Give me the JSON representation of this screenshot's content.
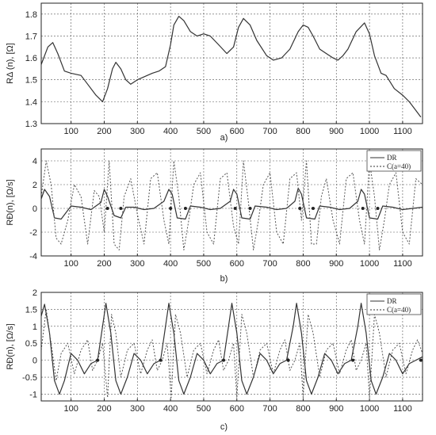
{
  "chart_data": [
    {
      "id": "a",
      "type": "line",
      "caption": "a)",
      "ylabel": "RΔ (n), [Ω]",
      "xlim": [
        10,
        1160
      ],
      "ylim": [
        1.3,
        1.85
      ],
      "xticks": [
        100,
        200,
        300,
        400,
        500,
        600,
        700,
        800,
        900,
        1000,
        1100
      ],
      "yticks": [
        1.3,
        1.4,
        1.5,
        1.6,
        1.7,
        1.8
      ],
      "ytick_labels": [
        "1.3",
        "1.4",
        "1.5",
        "1.6",
        "1.7",
        "1.8"
      ],
      "grid": true,
      "legend": null,
      "series": [
        {
          "style": "solid",
          "x": [
            10,
            30,
            45,
            60,
            80,
            100,
            130,
            150,
            175,
            195,
            210,
            225,
            235,
            250,
            265,
            280,
            300,
            330,
            345,
            365,
            385,
            400,
            410,
            425,
            440,
            460,
            480,
            500,
            520,
            545,
            570,
            590,
            605,
            620,
            640,
            660,
            690,
            710,
            735,
            760,
            785,
            800,
            815,
            830,
            850,
            870,
            890,
            905,
            920,
            935,
            960,
            985,
            1000,
            1015,
            1035,
            1050,
            1075,
            1100,
            1120,
            1140,
            1155
          ],
          "y": [
            1.57,
            1.65,
            1.67,
            1.62,
            1.54,
            1.53,
            1.52,
            1.48,
            1.43,
            1.4,
            1.46,
            1.55,
            1.58,
            1.55,
            1.5,
            1.48,
            1.5,
            1.52,
            1.53,
            1.54,
            1.56,
            1.66,
            1.75,
            1.79,
            1.77,
            1.72,
            1.7,
            1.71,
            1.7,
            1.66,
            1.62,
            1.65,
            1.74,
            1.78,
            1.75,
            1.68,
            1.61,
            1.59,
            1.6,
            1.64,
            1.72,
            1.75,
            1.74,
            1.7,
            1.64,
            1.62,
            1.6,
            1.59,
            1.61,
            1.64,
            1.72,
            1.76,
            1.71,
            1.61,
            1.53,
            1.52,
            1.46,
            1.43,
            1.4,
            1.36,
            1.33
          ]
        }
      ]
    },
    {
      "id": "b",
      "type": "line",
      "caption": "b)",
      "ylabel": "RĐ(n), [Ω/s]",
      "xlim": [
        10,
        1160
      ],
      "ylim": [
        -4,
        5
      ],
      "xticks": [
        100,
        200,
        300,
        400,
        500,
        600,
        700,
        800,
        900,
        1000,
        1100
      ],
      "yticks": [
        -4,
        -2,
        0,
        2,
        4
      ],
      "ytick_labels": [
        "-4",
        "-2",
        "0",
        "2",
        "4"
      ],
      "grid": true,
      "legend": {
        "placement": "top-right",
        "entries": [
          "DR",
          "C(a=40)"
        ]
      },
      "zero_markers": [
        210,
        250,
        400,
        445,
        595,
        640,
        790,
        830,
        980,
        1025
      ],
      "series": [
        {
          "name": "DR",
          "style": "solid",
          "x": [
            10,
            20,
            35,
            50,
            70,
            100,
            130,
            160,
            190,
            200,
            210,
            230,
            250,
            265,
            290,
            320,
            350,
            380,
            395,
            405,
            420,
            445,
            460,
            490,
            520,
            550,
            580,
            590,
            600,
            615,
            640,
            655,
            690,
            720,
            750,
            775,
            785,
            795,
            810,
            835,
            850,
            880,
            910,
            940,
            965,
            975,
            985,
            1000,
            1025,
            1040,
            1070,
            1100,
            1130,
            1160
          ],
          "y": [
            0.8,
            1.6,
            1.0,
            -0.8,
            -0.9,
            0.2,
            0.1,
            -0.1,
            0.5,
            1.6,
            1.0,
            -0.6,
            -0.8,
            0.1,
            0.1,
            -0.1,
            0.0,
            0.6,
            1.6,
            1.2,
            -0.8,
            -0.9,
            0.2,
            0.1,
            -0.1,
            0.0,
            0.6,
            1.6,
            1.2,
            -0.8,
            -0.9,
            0.2,
            0.1,
            -0.1,
            0.0,
            0.6,
            1.7,
            1.2,
            -0.8,
            -0.9,
            0.2,
            0.1,
            -0.1,
            0.0,
            0.6,
            1.6,
            1.2,
            -0.8,
            -0.9,
            0.2,
            0.1,
            -0.1,
            0.0,
            0.1
          ]
        },
        {
          "name": "C(a=40)",
          "style": "dotted",
          "x": [
            10,
            25,
            40,
            55,
            70,
            90,
            110,
            130,
            150,
            170,
            185,
            200,
            215,
            230,
            245,
            260,
            280,
            300,
            320,
            340,
            360,
            380,
            395,
            410,
            425,
            440,
            455,
            470,
            490,
            510,
            530,
            550,
            570,
            590,
            605,
            620,
            635,
            650,
            665,
            680,
            700,
            720,
            740,
            760,
            780,
            795,
            810,
            825,
            840,
            855,
            870,
            890,
            910,
            930,
            950,
            970,
            985,
            1000,
            1015,
            1030,
            1045,
            1060,
            1080,
            1100,
            1120,
            1140,
            1160
          ],
          "y": [
            1.0,
            4.0,
            2.0,
            -2.5,
            -3.0,
            -1.0,
            2.0,
            1.0,
            -3.0,
            1.5,
            1.0,
            -2.0,
            4.0,
            -3.0,
            -3.5,
            1.0,
            2.5,
            -0.5,
            -3.0,
            2.5,
            3.0,
            -1.0,
            -3.0,
            4.0,
            1.0,
            -3.5,
            -1.0,
            2.0,
            3.0,
            -2.0,
            -3.0,
            2.5,
            3.0,
            -1.5,
            -3.0,
            4.0,
            0.5,
            -3.5,
            -1.0,
            2.0,
            3.0,
            -2.0,
            -3.0,
            2.5,
            3.0,
            -1.0,
            4.0,
            -3.0,
            -3.0,
            1.0,
            2.5,
            -1.0,
            -3.0,
            2.5,
            3.0,
            -1.0,
            -3.0,
            4.0,
            1.0,
            -3.5,
            -1.0,
            2.0,
            3.0,
            -2.0,
            -3.0,
            2.5,
            2.0
          ]
        }
      ]
    },
    {
      "id": "c",
      "type": "line",
      "caption": "c)",
      "ylabel": "RĐ(n), [Ω/s]",
      "xlim": [
        10,
        1160
      ],
      "ylim": [
        -1.2,
        2.0
      ],
      "xticks": [
        100,
        200,
        300,
        400,
        500,
        600,
        700,
        800,
        900,
        1000,
        1100
      ],
      "yticks": [
        -1,
        -0.5,
        0,
        0.5,
        1,
        1.5,
        2
      ],
      "ytick_labels": [
        "-1",
        "-0.5",
        "0",
        "0.5",
        "1",
        "1.5",
        "2"
      ],
      "grid": true,
      "legend": {
        "placement": "top-right",
        "entries": [
          "DR",
          "C(a=40)"
        ]
      },
      "zero_markers": [
        180,
        370,
        560,
        755,
        950,
        1155
      ],
      "series": [
        {
          "name": "DR",
          "style": "solid",
          "x": [
            10,
            20,
            35,
            50,
            65,
            80,
            100,
            120,
            140,
            160,
            180,
            195,
            205,
            220,
            235,
            250,
            270,
            290,
            310,
            330,
            350,
            370,
            385,
            395,
            410,
            425,
            440,
            460,
            480,
            500,
            520,
            540,
            560,
            575,
            585,
            600,
            615,
            630,
            650,
            670,
            690,
            710,
            730,
            750,
            770,
            780,
            795,
            810,
            825,
            845,
            865,
            885,
            905,
            925,
            945,
            965,
            975,
            990,
            1005,
            1020,
            1040,
            1060,
            1080,
            1100,
            1120,
            1140,
            1160
          ],
          "y": [
            1.3,
            1.65,
            0.8,
            -0.6,
            -1.0,
            -0.6,
            0.2,
            0.0,
            -0.4,
            -0.1,
            0.0,
            1.0,
            1.68,
            0.8,
            -0.6,
            -1.0,
            -0.5,
            0.2,
            0.0,
            -0.4,
            -0.1,
            0.0,
            1.0,
            1.68,
            0.8,
            -0.6,
            -1.0,
            -0.5,
            0.2,
            0.0,
            -0.4,
            -0.1,
            0.0,
            1.0,
            1.68,
            0.8,
            -0.6,
            -1.0,
            -0.5,
            0.2,
            0.0,
            -0.4,
            -0.1,
            0.0,
            1.0,
            1.68,
            0.8,
            -0.6,
            -1.0,
            -0.5,
            0.2,
            0.0,
            -0.4,
            -0.1,
            0.0,
            1.0,
            1.68,
            0.8,
            -0.6,
            -1.0,
            -0.5,
            0.2,
            0.0,
            -0.4,
            -0.1,
            0.0,
            0.1
          ]
        },
        {
          "name": "C(a=40)",
          "style": "dotted",
          "x": [
            10,
            25,
            40,
            55,
            70,
            90,
            110,
            130,
            150,
            165,
            180,
            195,
            210,
            222,
            235,
            250,
            270,
            290,
            310,
            330,
            345,
            360,
            375,
            390,
            402,
            415,
            430,
            450,
            470,
            490,
            510,
            530,
            545,
            560,
            575,
            590,
            600,
            615,
            630,
            650,
            670,
            690,
            710,
            730,
            745,
            760,
            775,
            790,
            800,
            815,
            830,
            850,
            870,
            890,
            910,
            930,
            945,
            960,
            975,
            990,
            1000,
            1015,
            1030,
            1050,
            1070,
            1090,
            1110,
            1130,
            1145,
            1160
          ],
          "y": [
            0.3,
            1.5,
            0.5,
            -0.6,
            0.2,
            0.5,
            -0.4,
            0.3,
            0.6,
            -0.3,
            0.0,
            0.5,
            -1.1,
            1.35,
            0.8,
            -0.5,
            0.3,
            0.5,
            -0.4,
            0.3,
            0.6,
            -0.3,
            0.0,
            0.5,
            -1.1,
            1.35,
            0.8,
            -0.5,
            0.3,
            0.5,
            -0.4,
            0.3,
            0.6,
            -0.3,
            0.0,
            0.5,
            -1.1,
            1.35,
            0.8,
            -0.5,
            0.3,
            0.5,
            -0.4,
            0.3,
            0.6,
            -0.3,
            0.0,
            0.5,
            -1.1,
            1.35,
            0.8,
            -0.5,
            0.3,
            0.5,
            -0.4,
            0.3,
            0.6,
            -0.3,
            0.0,
            0.5,
            -1.1,
            1.35,
            0.8,
            -0.5,
            0.3,
            0.5,
            -0.4,
            0.3,
            0.6,
            0.2
          ]
        }
      ]
    }
  ]
}
